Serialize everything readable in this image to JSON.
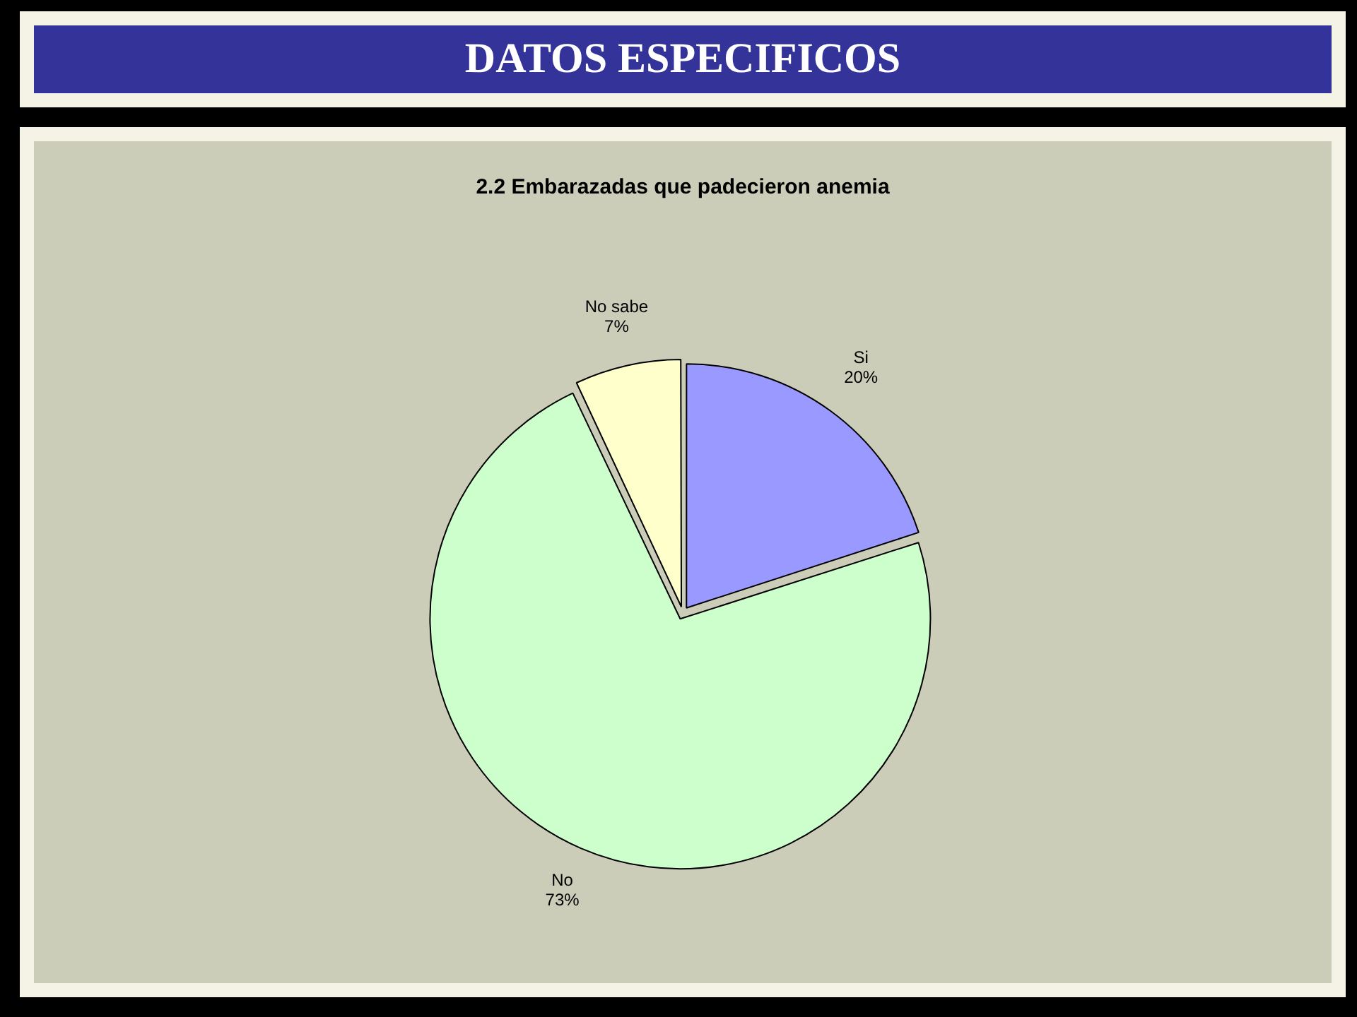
{
  "chart_data": {
    "type": "pie",
    "title": "DATOS ESPECIFICOS",
    "subtitle": "2.2 Embarazadas que padecieron anemia",
    "categories": [
      "Si",
      "No",
      "No sabe"
    ],
    "values": [
      20,
      73,
      7
    ],
    "value_labels": [
      "20%",
      "73%",
      "7%"
    ],
    "colors": [
      "#9999ff",
      "#ccffcc",
      "#ffffcc"
    ],
    "legend": false
  }
}
